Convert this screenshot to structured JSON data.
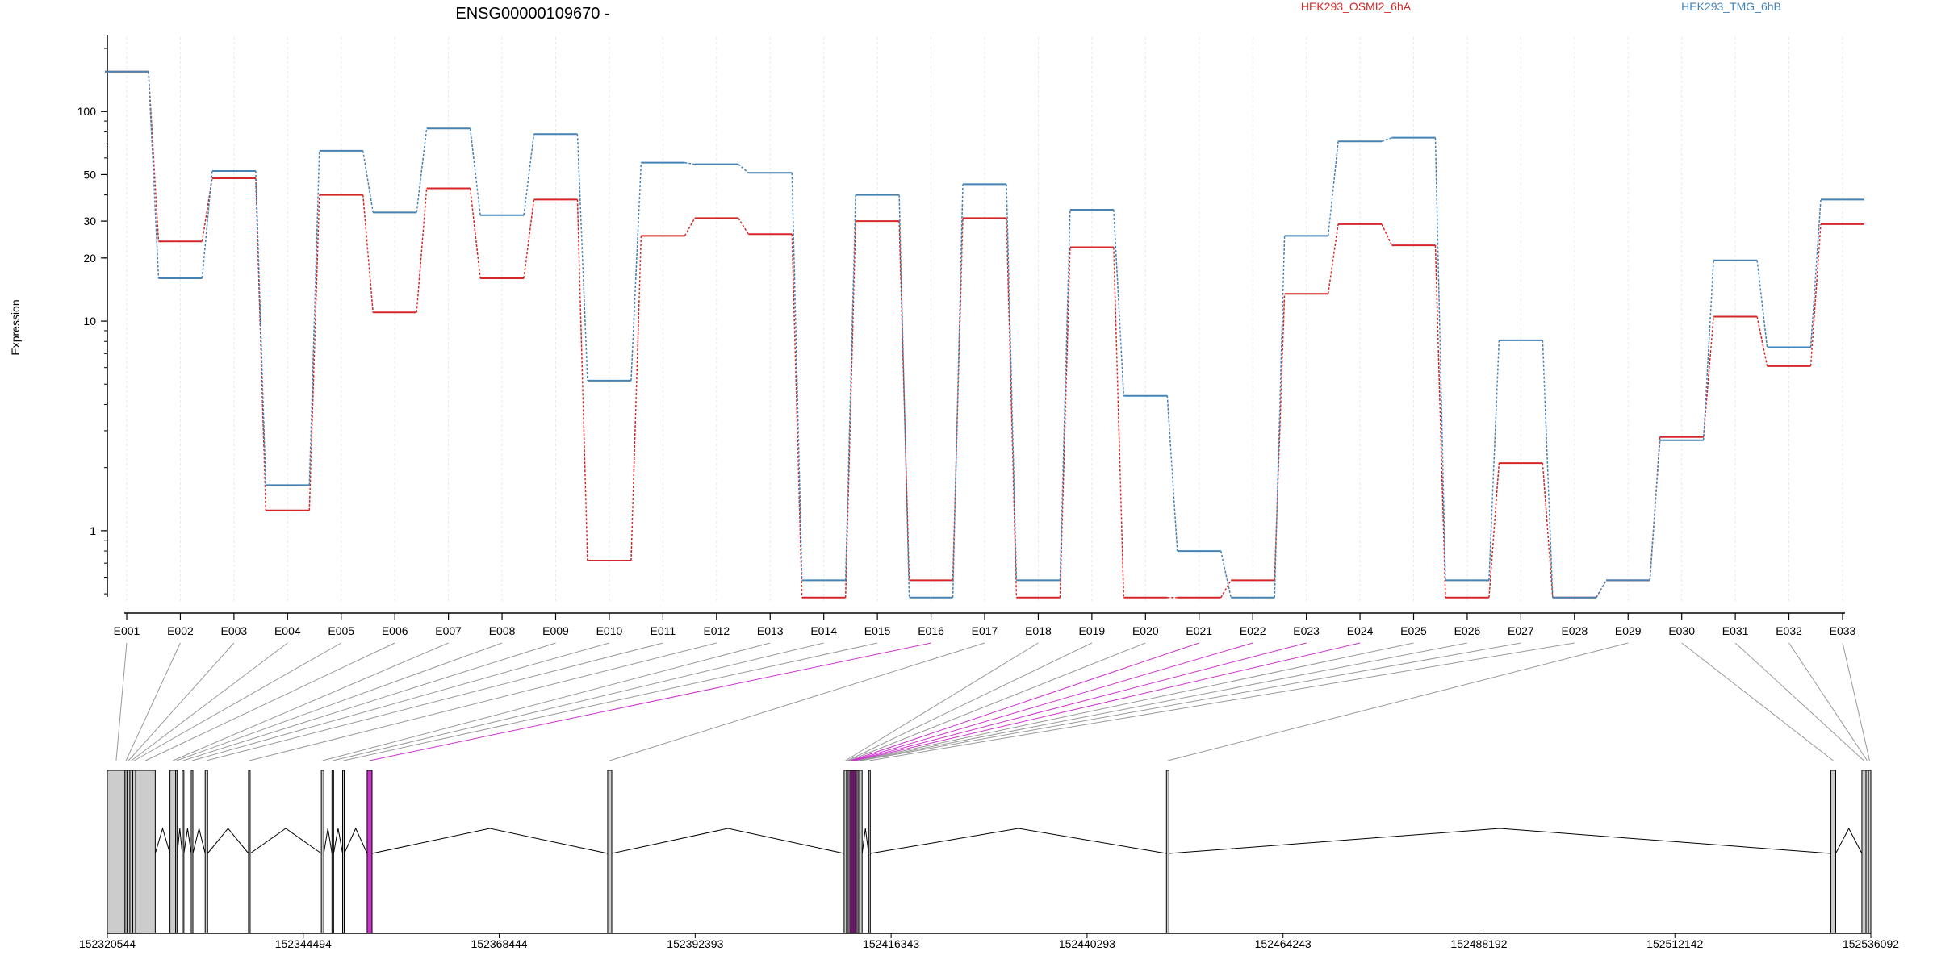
{
  "chart_data": {
    "type": "line",
    "title": "ENSG00000109670 -",
    "ylabel": "Expression",
    "yscale": "log",
    "ylim": [
      0.45,
      200
    ],
    "y_ticks": [
      1,
      10,
      20,
      30,
      50,
      100
    ],
    "y_tick_labels": [
      "1",
      "10",
      "20",
      "30",
      "50",
      "100"
    ],
    "categories": [
      "E001",
      "E002",
      "E003",
      "E004",
      "E005",
      "E006",
      "E007",
      "E008",
      "E009",
      "E010",
      "E011",
      "E012",
      "E013",
      "E014",
      "E015",
      "E016",
      "E017",
      "E018",
      "E019",
      "E020",
      "E021",
      "E022",
      "E023",
      "E024",
      "E025",
      "E026",
      "E027",
      "E028",
      "E029",
      "E030",
      "E031",
      "E032",
      "E033"
    ],
    "legend_placement": "top-right",
    "series": [
      {
        "name": "HEK293_OSMI2_6hA",
        "color": "#d62728",
        "values": [
          155,
          24,
          48,
          1.25,
          40,
          11,
          43,
          16,
          38,
          0.72,
          25.5,
          31,
          26,
          0.48,
          30,
          0.58,
          31,
          0.48,
          22.5,
          0.48,
          0.48,
          0.58,
          13.5,
          29,
          23,
          0.48,
          2.1,
          0.48,
          0.58,
          2.8,
          10.5,
          6.1,
          29
        ]
      },
      {
        "name": "HEK293_TMG_6hB",
        "color": "#4682b4",
        "values": [
          155,
          16,
          52,
          1.65,
          65,
          33,
          83,
          32,
          78,
          5.2,
          57,
          56,
          51,
          0.58,
          40,
          0.48,
          45,
          0.58,
          34,
          4.4,
          0.8,
          0.48,
          25.5,
          72,
          75,
          0.58,
          8.1,
          0.48,
          0.58,
          2.7,
          19.5,
          7.5,
          38
        ]
      }
    ],
    "genomic_axis": {
      "tick_labels": [
        "152320544",
        "152344494",
        "152368444",
        "152392393",
        "152416343",
        "152440293",
        "152464243",
        "152488192",
        "152512142",
        "152536092"
      ],
      "range": [
        152320544,
        152536092
      ],
      "tick_step": 23950,
      "exon_color": "#cccccc",
      "highlight_color": "#cc33cc",
      "exons": [
        {
          "id": "E001",
          "start": 152320544,
          "end": 152322700,
          "highlight": false
        },
        {
          "id": "E002",
          "start": 152322700,
          "end": 152322950,
          "highlight": false
        },
        {
          "id": "E003",
          "start": 152322950,
          "end": 152323300,
          "highlight": false
        },
        {
          "id": "E004",
          "start": 152323300,
          "end": 152323650,
          "highlight": false
        },
        {
          "id": "E005",
          "start": 152323650,
          "end": 152324000,
          "highlight": false
        },
        {
          "id": "E006",
          "start": 152324000,
          "end": 152326400,
          "highlight": false
        },
        {
          "id": "E007",
          "start": 152328200,
          "end": 152328900,
          "highlight": false
        },
        {
          "id": "E008",
          "start": 152328900,
          "end": 152329000,
          "highlight": false
        },
        {
          "id": "E009",
          "start": 152329700,
          "end": 152329900,
          "highlight": false
        },
        {
          "id": "E010",
          "start": 152330800,
          "end": 152331000,
          "highlight": false
        },
        {
          "id": "E011",
          "start": 152332500,
          "end": 152332800,
          "highlight": false
        },
        {
          "id": "E012",
          "start": 152337800,
          "end": 152338000,
          "highlight": false
        },
        {
          "id": "E013",
          "start": 152346700,
          "end": 152347000,
          "highlight": false
        },
        {
          "id": "E014",
          "start": 152348000,
          "end": 152348200,
          "highlight": false
        },
        {
          "id": "E015",
          "start": 152349300,
          "end": 152349500,
          "highlight": false
        },
        {
          "id": "E016",
          "start": 152352300,
          "end": 152352900,
          "highlight": true
        },
        {
          "id": "E017",
          "start": 152381700,
          "end": 152382200,
          "highlight": false
        },
        {
          "id": "E018",
          "start": 152410600,
          "end": 152410900,
          "highlight": false
        },
        {
          "id": "E019",
          "start": 152410900,
          "end": 152411100,
          "highlight": false
        },
        {
          "id": "E020",
          "start": 152411100,
          "end": 152411300,
          "highlight": false
        },
        {
          "id": "E021",
          "start": 152411300,
          "end": 152411500,
          "highlight": true
        },
        {
          "id": "E022",
          "start": 152411500,
          "end": 152411700,
          "highlight": true
        },
        {
          "id": "E023",
          "start": 152411700,
          "end": 152411900,
          "highlight": true
        },
        {
          "id": "E024",
          "start": 152411900,
          "end": 152412100,
          "highlight": true
        },
        {
          "id": "E025",
          "start": 152412100,
          "end": 152412300,
          "highlight": false
        },
        {
          "id": "E026",
          "start": 152412300,
          "end": 152412500,
          "highlight": false
        },
        {
          "id": "E027",
          "start": 152412500,
          "end": 152412800,
          "highlight": false
        },
        {
          "id": "E028",
          "start": 152413600,
          "end": 152413800,
          "highlight": false
        },
        {
          "id": "E029",
          "start": 152450000,
          "end": 152450300,
          "highlight": false
        },
        {
          "id": "E030",
          "start": 152531200,
          "end": 152531800,
          "highlight": false
        },
        {
          "id": "E031",
          "start": 152535000,
          "end": 152535500,
          "highlight": false
        },
        {
          "id": "E032",
          "start": 152535500,
          "end": 152535800,
          "highlight": false
        },
        {
          "id": "E033",
          "start": 152535800,
          "end": 152536092,
          "highlight": false
        }
      ]
    }
  }
}
